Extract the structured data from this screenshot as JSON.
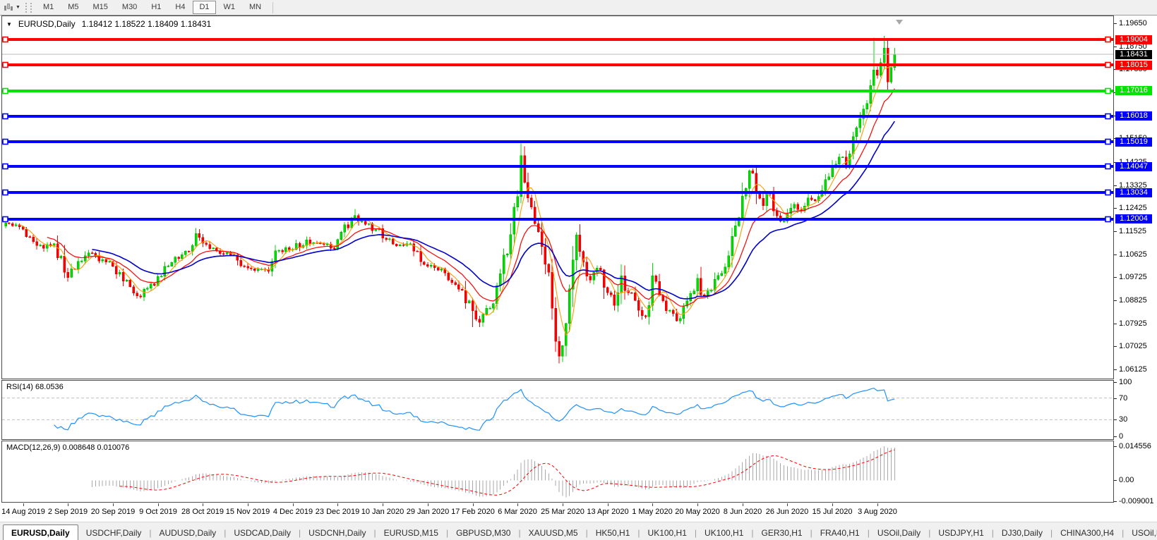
{
  "toolbar": {
    "timeframes": [
      "M1",
      "M5",
      "M15",
      "M30",
      "H1",
      "H4",
      "D1",
      "W1",
      "MN"
    ],
    "active_timeframe": "D1"
  },
  "chart": {
    "title_symbol": "EURUSD,Daily",
    "title_ohlc": "1.18412 1.18522 1.18409 1.18431"
  },
  "rsi": {
    "label": "RSI(14) 68.0536",
    "value": 68.0536,
    "color": "#1e90ff",
    "axis_values": [
      100,
      70,
      30,
      0
    ],
    "levels": [
      70,
      30
    ],
    "ylim": [
      0,
      100
    ]
  },
  "macd": {
    "label": "MACD(12,26,9) 0.008648 0.010076",
    "macd_value": 0.008648,
    "signal_value": 0.010076,
    "axis": [
      {
        "text": "0.014556",
        "value": 0.014556
      },
      {
        "text": "0.00",
        "value": 0.0
      },
      {
        "text": "-0.009001",
        "value": -0.009001
      }
    ],
    "ylim": [
      -0.0092,
      0.0166
    ],
    "histogram_color": "#a8a8a8",
    "signal_color": "#ff0000"
  },
  "chart_data": {
    "type": "candlestick",
    "symbol": "EURUSD",
    "timeframe": "Daily",
    "ohlc_display": {
      "open": 1.18412,
      "high": 1.18522,
      "low": 1.18409,
      "close": 1.18431
    },
    "current_price": 1.18431,
    "current_price_line_color": "#b9b9b9",
    "ylim": [
      1.05765,
      1.19925
    ],
    "y_axis_ticks": [
      1.1965,
      1.1875,
      1.1785,
      1.1695,
      1.1605,
      1.1515,
      1.14225,
      1.13325,
      1.12425,
      1.11525,
      1.10625,
      1.09725,
      1.08825,
      1.07925,
      1.07025,
      1.06125
    ],
    "x_axis_labels": [
      "14 Aug 2019",
      "2 Sep 2019",
      "20 Sep 2019",
      "9 Oct 2019",
      "28 Oct 2019",
      "15 Nov 2019",
      "4 Dec 2019",
      "23 Dec 2019",
      "10 Jan 2020",
      "29 Jan 2020",
      "17 Feb 2020",
      "6 Mar 2020",
      "25 Mar 2020",
      "13 Apr 2020",
      "1 May 2020",
      "20 May 2020",
      "8 Jun 2020",
      "26 Jun 2020",
      "15 Jul 2020",
      "3 Aug 2020"
    ],
    "first_label_bar_index": 5,
    "bars_per_label": 13,
    "num_bars": 258,
    "candle_colors": {
      "bull": "#00dd00",
      "bull_stroke": "#00a800",
      "bear": "#ff0000",
      "bear_stroke": "#d40000"
    },
    "hlines": [
      {
        "price": 1.19004,
        "label": "1.19004",
        "color": "#ff0000"
      },
      {
        "price": 1.18015,
        "label": "1.18015",
        "color": "#ff0000"
      },
      {
        "price": 1.17016,
        "label": "1.17016",
        "color": "#00e400"
      },
      {
        "price": 1.16018,
        "label": "1.16018",
        "color": "#0000ff"
      },
      {
        "price": 1.15019,
        "label": "1.15019",
        "color": "#0000ff"
      },
      {
        "price": 1.14047,
        "label": "1.14047",
        "color": "#0000ff"
      },
      {
        "price": 1.13034,
        "label": "1.13034",
        "color": "#0000ff"
      },
      {
        "price": 1.12004,
        "label": "1.12004",
        "color": "#0000ff"
      }
    ],
    "moving_averages": [
      {
        "name": "fast",
        "type": "sma",
        "period": 5,
        "color": "#ff9c00",
        "width": 1.1
      },
      {
        "name": "mid",
        "type": "ema",
        "period": 13,
        "color": "#ff0000",
        "width": 1.2
      },
      {
        "name": "slow",
        "type": "ema",
        "period": 26,
        "color": "#0000cc",
        "width": 1.6
      }
    ],
    "price_path_anchors": [
      [
        0,
        1.1185
      ],
      [
        5,
        1.116
      ],
      [
        8,
        1.1112
      ],
      [
        11,
        1.1085
      ],
      [
        14,
        1.1103
      ],
      [
        17,
        1.0992
      ],
      [
        18,
        1.0972
      ],
      [
        21,
        1.1035
      ],
      [
        24,
        1.1068
      ],
      [
        28,
        1.1042
      ],
      [
        31,
        1.1015
      ],
      [
        35,
        1.0962
      ],
      [
        39,
        1.0896
      ],
      [
        41,
        1.093
      ],
      [
        44,
        1.0976
      ],
      [
        48,
        1.103
      ],
      [
        52,
        1.1074
      ],
      [
        55,
        1.1144
      ],
      [
        57,
        1.1106
      ],
      [
        61,
        1.1076
      ],
      [
        65,
        1.106
      ],
      [
        69,
        1.1016
      ],
      [
        73,
        1.1004
      ],
      [
        76,
        1.0996
      ],
      [
        79,
        1.1078
      ],
      [
        83,
        1.1082
      ],
      [
        87,
        1.1118
      ],
      [
        91,
        1.1104
      ],
      [
        94,
        1.1086
      ],
      [
        96,
        1.112
      ],
      [
        101,
        1.1214
      ],
      [
        104,
        1.118
      ],
      [
        107,
        1.1158
      ],
      [
        109,
        1.1126
      ],
      [
        113,
        1.1096
      ],
      [
        117,
        1.1104
      ],
      [
        121,
        1.1022
      ],
      [
        125,
        1.1
      ],
      [
        129,
        1.0952
      ],
      [
        132,
        1.0922
      ],
      [
        135,
        1.0842
      ],
      [
        137,
        1.0796
      ],
      [
        140,
        1.0852
      ],
      [
        143,
        1.0986
      ],
      [
        146,
        1.114
      ],
      [
        148,
        1.1288
      ],
      [
        149,
        1.1448
      ],
      [
        151,
        1.1282
      ],
      [
        153,
        1.1182
      ],
      [
        155,
        1.1092
      ],
      [
        157,
        1.0992
      ],
      [
        159,
        1.0722
      ],
      [
        160,
        1.0664
      ],
      [
        162,
        1.0792
      ],
      [
        164,
        1.104
      ],
      [
        165,
        1.1138
      ],
      [
        167,
        1.1032
      ],
      [
        169,
        1.0962
      ],
      [
        171,
        1.1008
      ],
      [
        174,
        1.0912
      ],
      [
        176,
        1.0862
      ],
      [
        178,
        1.0978
      ],
      [
        180,
        1.0912
      ],
      [
        182,
        1.0882
      ],
      [
        184,
        1.0822
      ],
      [
        186,
        1.0862
      ],
      [
        187,
        1.0978
      ],
      [
        189,
        1.0902
      ],
      [
        191,
        1.0842
      ],
      [
        194,
        1.0802
      ],
      [
        197,
        1.088
      ],
      [
        200,
        1.0968
      ],
      [
        202,
        1.0902
      ],
      [
        204,
        1.0922
      ],
      [
        206,
        1.098
      ],
      [
        208,
        1.1012
      ],
      [
        210,
        1.1132
      ],
      [
        213,
        1.129
      ],
      [
        215,
        1.1388
      ],
      [
        217,
        1.1302
      ],
      [
        219,
        1.1252
      ],
      [
        221,
        1.1298
      ],
      [
        223,
        1.1212
      ],
      [
        225,
        1.1192
      ],
      [
        226,
        1.1222
      ],
      [
        228,
        1.1258
      ],
      [
        230,
        1.1232
      ],
      [
        232,
        1.1282
      ],
      [
        234,
        1.1272
      ],
      [
        236,
        1.1312
      ],
      [
        239,
        1.1402
      ],
      [
        241,
        1.1442
      ],
      [
        243,
        1.1412
      ],
      [
        245,
        1.1522
      ],
      [
        247,
        1.1592
      ],
      [
        249,
        1.1652
      ],
      [
        250,
        1.1722
      ],
      [
        251,
        1.1782
      ],
      [
        252,
        1.1762
      ],
      [
        253,
        1.1812
      ],
      [
        254,
        1.1868
      ],
      [
        255,
        1.1736
      ],
      [
        256,
        1.1792
      ],
      [
        257,
        1.18431
      ]
    ],
    "wick_extremes": [
      [
        101,
        "h",
        1.1239
      ],
      [
        135,
        "l",
        1.0778
      ],
      [
        137,
        "l",
        1.0778
      ],
      [
        149,
        "h",
        1.1495
      ],
      [
        160,
        "l",
        1.0636
      ],
      [
        165,
        "h",
        1.1148
      ],
      [
        251,
        "h",
        1.1909
      ],
      [
        254,
        "h",
        1.1916
      ],
      [
        255,
        "l",
        1.1702
      ]
    ]
  },
  "tabs": {
    "items": [
      "EURUSD,Daily",
      "USDCHF,Daily",
      "AUDUSD,Daily",
      "USDCAD,Daily",
      "USDCNH,Daily",
      "EURUSD,M15",
      "GBPUSD,M30",
      "XAUUSD,M5",
      "HK50,H1",
      "UK100,H1",
      "UK100,H1",
      "GER30,H1",
      "FRA40,H1",
      "USOil,Daily",
      "USDJPY,H1",
      "DJ30,Daily",
      "CHINA300,H4",
      "USOil,D"
    ],
    "active": "EURUSD,Daily",
    "scroll_left": "◂",
    "scroll_right": "▸"
  }
}
